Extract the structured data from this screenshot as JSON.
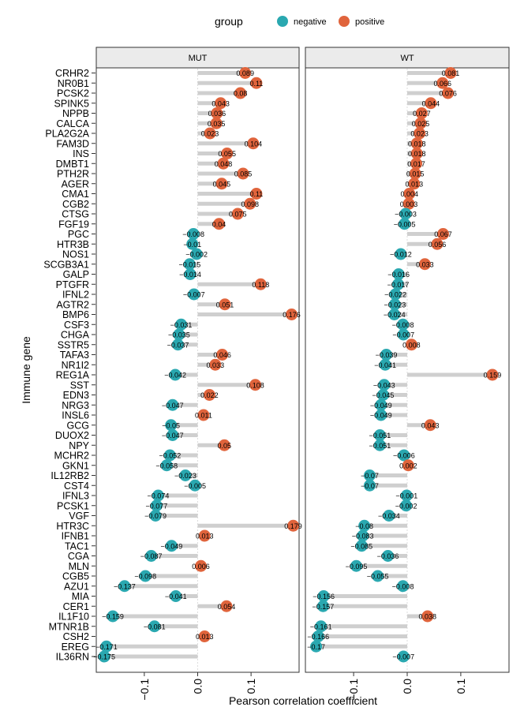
{
  "legend": {
    "title": "group",
    "items": [
      {
        "label": "negative",
        "color": "#2AA8B0"
      },
      {
        "label": "positive",
        "color": "#E0643C"
      }
    ]
  },
  "colors": {
    "negative": "#2AA8B0",
    "positive": "#E0643C",
    "stem": "#CFCFCF",
    "strip": "#EBEBEB"
  },
  "chart_data": {
    "type": "lollipop",
    "xlabel": "Pearson correlation coefficient",
    "ylabel": "Immune gene",
    "xlim": [
      -0.19,
      0.19
    ],
    "x_ticks": [
      -0.1,
      "0.0",
      0.1
    ],
    "grid": false,
    "legend_position": "top",
    "genes": [
      "CRHR2",
      "NR0B1",
      "PCSK2",
      "SPINK5",
      "NPPB",
      "CALCA",
      "PLA2G2A",
      "FAM3D",
      "INS",
      "DMBT1",
      "PTH2R",
      "AGER",
      "CMA1",
      "CGB2",
      "CTSG",
      "FGF19",
      "PGC",
      "HTR3B",
      "NOS1",
      "SCGB3A1",
      "GALP",
      "PTGFR",
      "IFNL2",
      "AGTR2",
      "BMP6",
      "CSF3",
      "CHGA",
      "SSTR5",
      "TAFA3",
      "NR1I2",
      "REG1A",
      "SST",
      "EDN3",
      "NRG3",
      "INSL6",
      "GCG",
      "DUOX2",
      "NPY",
      "MCHR2",
      "GKN1",
      "IL12RB2",
      "CST4",
      "IFNL3",
      "PCSK1",
      "VGF",
      "HTR3C",
      "IFNB1",
      "TAC1",
      "CGA",
      "MLN",
      "CGB5",
      "AZU1",
      "MIA",
      "CER1",
      "IL1F10",
      "MTNR1B",
      "CSH2",
      "EREG",
      "IL36RN"
    ],
    "panels": [
      {
        "name": "MUT",
        "values": [
          0.089,
          0.11,
          0.08,
          0.043,
          0.036,
          0.035,
          0.023,
          0.104,
          0.055,
          0.048,
          0.085,
          0.045,
          0.11,
          0.098,
          0.075,
          0.04,
          -0.008,
          -0.01,
          -0.002,
          -0.015,
          -0.014,
          0.118,
          -0.007,
          0.051,
          0.176,
          -0.031,
          -0.035,
          -0.037,
          0.046,
          0.033,
          -0.042,
          0.108,
          0.022,
          -0.047,
          0.011,
          -0.05,
          -0.047,
          0.05,
          -0.052,
          -0.058,
          -0.023,
          -0.005,
          -0.074,
          -0.077,
          -0.079,
          0.179,
          0.013,
          -0.049,
          -0.087,
          0.006,
          -0.098,
          -0.137,
          -0.041,
          0.054,
          -0.159,
          -0.081,
          0.013,
          -0.171,
          -0.175
        ],
        "labels": [
          "0.089",
          "0.11",
          "0.08",
          "0.043",
          "0.036",
          "0.035",
          "0.023",
          "0.104",
          "0.055",
          "0.048",
          "0.085",
          "0.045",
          "0.11",
          "0.098",
          "0.075",
          "0.04",
          "-0.008",
          "-0.01",
          "-0.002",
          "-0.015",
          "-0.014",
          "0.118",
          "-0.007",
          "0.051",
          "0.176",
          "-0.031",
          "-0.035",
          "-0.037",
          "0.046",
          "0.033",
          "-0.042",
          "0.108",
          "0.022",
          "-0.047",
          "0.011",
          "-0.05",
          "-0.047",
          "0.05",
          "-0.052",
          "-0.058",
          "-0.023",
          "-0.005",
          "-0.074",
          "-0.077",
          "-0.079",
          "0.179",
          "0.013",
          "-0.049",
          "-0.087",
          "0.006",
          "-0.098",
          "-0.137",
          "-0.041",
          "0.054",
          "-0.159",
          "-0.081",
          "0.013",
          "-0.171",
          "-0.175"
        ]
      },
      {
        "name": "WT",
        "values": [
          0.081,
          0.066,
          0.076,
          0.044,
          0.027,
          0.025,
          0.023,
          0.018,
          0.018,
          0.017,
          0.015,
          0.013,
          0.004,
          0.003,
          -0.003,
          -0.005,
          0.067,
          0.056,
          -0.012,
          0.033,
          -0.016,
          -0.017,
          -0.022,
          -0.023,
          -0.024,
          -0.008,
          -0.007,
          0.008,
          -0.039,
          -0.041,
          0.159,
          -0.043,
          -0.045,
          -0.049,
          -0.049,
          0.043,
          -0.051,
          -0.051,
          -0.006,
          0.002,
          -0.07,
          -0.07,
          -0.001,
          -0.002,
          -0.034,
          -0.08,
          -0.083,
          -0.085,
          -0.036,
          -0.095,
          -0.055,
          -0.008,
          -0.156,
          -0.157,
          0.038,
          -0.161,
          -0.166,
          -0.17,
          -0.007
        ],
        "labels": [
          "0.081",
          "0.066",
          "0.076",
          "0.044",
          "0.027",
          "0.025",
          "0.023",
          "0.018",
          "0.018",
          "0.017",
          "0.015",
          "0.013",
          "0.004",
          "0.003",
          "-0.003",
          "-0.005",
          "0.067",
          "0.056",
          "-0.012",
          "0.033",
          "-0.016",
          "-0.017",
          "-0.022",
          "-0.023",
          "-0.024",
          "-0.008",
          "-0.007",
          "0.008",
          "-0.039",
          "-0.041",
          "0.159",
          "-0.043",
          "-0.045",
          "-0.049",
          "-0.049",
          "0.043",
          "-0.051",
          "-0.051",
          "-0.006",
          "0.002",
          "-0.07",
          "-0.07",
          "-0.001",
          "-0.002",
          "-0.034",
          "-0.08",
          "-0.083",
          "-0.085",
          "-0.036",
          "-0.095",
          "-0.055",
          "-0.008",
          "-0.156",
          "-0.157",
          "0.038",
          "-0.161",
          "-0.166",
          "-0.17",
          "-0.007"
        ]
      }
    ]
  }
}
